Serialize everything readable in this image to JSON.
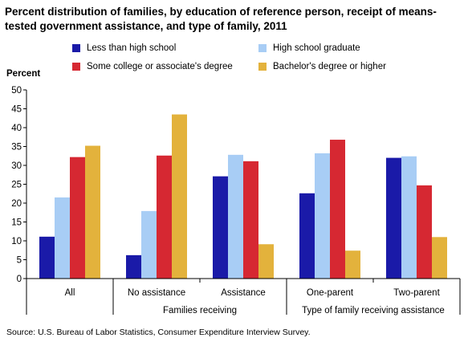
{
  "title": "Percent distribution of families, by education of reference person, receipt of means-tested government assistance, and type of family, 2011",
  "source": "Source: U.S. Bureau of Labor Statistics, Consumer Expenditure Interview Survey.",
  "colors": {
    "Less than high school": "#1a1aa8",
    "High school graduate": "#a8cdf5",
    "Some college or associate's degree": "#d62832",
    "Bachelor's degree or higher": "#e3b23c"
  },
  "chart_data": {
    "type": "bar",
    "categories": [
      "All",
      "No assistance",
      "Assistance",
      "One-parent",
      "Two-parent"
    ],
    "groups": [
      {
        "label": "Families receiving",
        "categories": [
          "No assistance",
          "Assistance"
        ]
      },
      {
        "label": "Type of family  receiving assistance",
        "categories": [
          "One-parent",
          "Two-parent"
        ]
      }
    ],
    "series": [
      {
        "name": "Less than high school",
        "values": [
          11.1,
          6.2,
          27.1,
          22.6,
          32.0
        ]
      },
      {
        "name": "High school graduate",
        "values": [
          21.5,
          17.9,
          32.8,
          33.2,
          32.4
        ]
      },
      {
        "name": "Some college or associate's degree",
        "values": [
          32.2,
          32.6,
          31.1,
          36.8,
          24.7
        ]
      },
      {
        "name": "Bachelor's degree or higher",
        "values": [
          35.2,
          43.5,
          9.1,
          7.4,
          11.0
        ]
      }
    ],
    "ylabel": "Percent",
    "ylim": [
      0,
      50
    ],
    "yticks": [
      0,
      5,
      10,
      15,
      20,
      25,
      30,
      35,
      40,
      45,
      50
    ],
    "legend_position": "top",
    "grid": false
  }
}
